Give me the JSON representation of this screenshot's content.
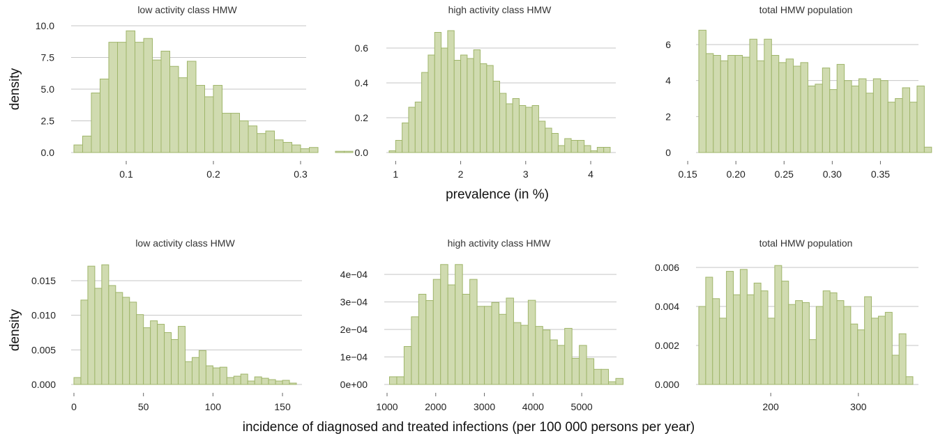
{
  "figure": {
    "shared_labels": {
      "top_ylabel": "density",
      "top_xlabel": "prevalence (in %)",
      "bottom_ylabel": "density",
      "bottom_xlabel": "incidence of diagnosed and treated infections (per 100 000 persons per year)"
    },
    "colors": {
      "bar_fill": "#d0dbb0",
      "bar_stroke": "#9fb56a",
      "grid": "#c6c6c6"
    }
  },
  "chart_data": [
    {
      "type": "bar",
      "title": "low activity class HMW",
      "xlabel": "",
      "ylabel": "density",
      "x_start": 0.04,
      "bin_width": 0.01,
      "values": [
        0.6,
        1.3,
        4.7,
        5.8,
        8.7,
        8.7,
        9.6,
        8.7,
        9.0,
        7.3,
        8.0,
        6.8,
        5.9,
        7.2,
        5.3,
        4.4,
        5.3,
        3.1,
        3.1,
        2.5,
        2.1,
        1.5,
        1.7,
        1.0,
        0.8,
        0.6,
        0.3,
        0.4,
        0.0,
        0.0,
        0.1,
        0.1
      ],
      "xlim": [
        0.04,
        0.3
      ],
      "ylim": [
        0,
        10.0
      ],
      "xticks": [
        {
          "v": 0.1,
          "label": "0.1"
        },
        {
          "v": 0.2,
          "label": "0.2"
        },
        {
          "v": 0.3,
          "label": "0.3"
        }
      ],
      "yticks": [
        {
          "v": 0,
          "label": "0.0"
        },
        {
          "v": 2.5,
          "label": "2.5"
        },
        {
          "v": 5.0,
          "label": "5.0"
        },
        {
          "v": 7.5,
          "label": "7.5"
        },
        {
          "v": 10.0,
          "label": "10.0"
        }
      ],
      "grid": true
    },
    {
      "type": "bar",
      "title": "high activity class HMW",
      "xlabel": "prevalence (in %)",
      "ylabel": "",
      "x_start": 0.9,
      "bin_width": 0.1,
      "values": [
        0.01,
        0.07,
        0.17,
        0.26,
        0.29,
        0.46,
        0.56,
        0.69,
        0.6,
        0.7,
        0.53,
        0.56,
        0.54,
        0.59,
        0.51,
        0.5,
        0.41,
        0.34,
        0.28,
        0.31,
        0.27,
        0.26,
        0.27,
        0.18,
        0.14,
        0.11,
        0.04,
        0.08,
        0.07,
        0.07,
        0.04,
        0.01,
        0.03,
        0.03
      ],
      "xlim": [
        0.9,
        4.3
      ],
      "ylim": [
        0,
        0.6
      ],
      "xticks": [
        {
          "v": 1,
          "label": "1"
        },
        {
          "v": 2,
          "label": "2"
        },
        {
          "v": 3,
          "label": "3"
        },
        {
          "v": 4,
          "label": "4"
        }
      ],
      "yticks": [
        {
          "v": 0,
          "label": "0.0"
        },
        {
          "v": 0.2,
          "label": "0.2"
        },
        {
          "v": 0.4,
          "label": "0.4"
        },
        {
          "v": 0.6,
          "label": "0.6"
        }
      ],
      "grid": true
    },
    {
      "type": "bar",
      "title": "total HMW population",
      "xlabel": "",
      "ylabel": "",
      "x_start": 0.1615,
      "bin_width": 0.00755,
      "values": [
        6.8,
        5.5,
        5.4,
        5.1,
        5.4,
        5.4,
        5.3,
        6.3,
        5.1,
        6.3,
        5.4,
        5.0,
        5.2,
        4.8,
        5.0,
        3.7,
        3.8,
        4.7,
        3.5,
        4.9,
        4.0,
        3.7,
        4.1,
        3.3,
        4.1,
        4.0,
        2.8,
        3.0,
        3.6,
        2.8,
        3.7,
        0.3
      ],
      "xlim": [
        0.1615,
        0.3837
      ],
      "ylim": [
        0,
        6
      ],
      "xticks": [
        {
          "v": 0.15,
          "label": "0.15"
        },
        {
          "v": 0.2,
          "label": "0.20"
        },
        {
          "v": 0.25,
          "label": "0.25"
        },
        {
          "v": 0.3,
          "label": "0.30"
        },
        {
          "v": 0.35,
          "label": "0.35"
        }
      ],
      "yticks": [
        {
          "v": 0,
          "label": "0"
        },
        {
          "v": 2,
          "label": "2"
        },
        {
          "v": 4,
          "label": "4"
        },
        {
          "v": 6,
          "label": "6"
        }
      ],
      "grid": true
    },
    {
      "type": "bar",
      "title": "low activity class HMW",
      "xlabel": "",
      "ylabel": "density",
      "x_start": 0,
      "bin_width": 5,
      "values": [
        0.001,
        0.0122,
        0.0171,
        0.0139,
        0.0173,
        0.0143,
        0.0133,
        0.0126,
        0.0119,
        0.0101,
        0.0082,
        0.0092,
        0.0087,
        0.0075,
        0.0065,
        0.0084,
        0.0033,
        0.0039,
        0.0049,
        0.0027,
        0.0024,
        0.0025,
        0.001,
        0.0012,
        0.0015,
        0.0005,
        0.0011,
        0.0009,
        0.0007,
        0.0005,
        0.0006,
        0.0002
      ],
      "xlim": [
        0,
        160
      ],
      "ylim": [
        0,
        0.015
      ],
      "xticks": [
        {
          "v": 0,
          "label": "0"
        },
        {
          "v": 50,
          "label": "50"
        },
        {
          "v": 100,
          "label": "100"
        },
        {
          "v": 150,
          "label": "150"
        }
      ],
      "yticks": [
        {
          "v": 0,
          "label": "0.000"
        },
        {
          "v": 0.005,
          "label": "0.005"
        },
        {
          "v": 0.01,
          "label": "0.010"
        },
        {
          "v": 0.015,
          "label": "0.015"
        }
      ],
      "grid": true
    },
    {
      "type": "bar",
      "title": "high activity class HMW",
      "xlabel": "incidence of diagnosed and treated infections (per 100 000 persons per year)",
      "ylabel": "",
      "x_start": 1050,
      "bin_width": 150,
      "values": [
        2.8e-05,
        2.8e-05,
        0.000138,
        0.000246,
        0.000328,
        0.000305,
        0.000382,
        0.000436,
        0.000362,
        0.000436,
        0.000328,
        0.000382,
        0.000284,
        0.000284,
        0.000298,
        0.000255,
        0.000314,
        0.000225,
        0.000215,
        0.000306,
        0.000211,
        0.000198,
        0.000162,
        0.000142,
        0.000204,
        9.5e-05,
        0.000142,
        9.4e-05,
        5.5e-05,
        5.5e-05,
        1e-05,
        2.2e-05
      ],
      "xlim": [
        1000,
        5600
      ],
      "ylim": [
        0,
        0.0004
      ],
      "xticks": [
        {
          "v": 1000,
          "label": "1000"
        },
        {
          "v": 2000,
          "label": "2000"
        },
        {
          "v": 3000,
          "label": "3000"
        },
        {
          "v": 4000,
          "label": "4000"
        },
        {
          "v": 5000,
          "label": "5000"
        }
      ],
      "yticks": [
        {
          "v": 0,
          "label": "0e+00"
        },
        {
          "v": 0.0001,
          "label": "1e−04"
        },
        {
          "v": 0.0002,
          "label": "2e−04"
        },
        {
          "v": 0.0003,
          "label": "3e−04"
        },
        {
          "v": 0.0004,
          "label": "4e−04"
        }
      ],
      "grid": true
    },
    {
      "type": "bar",
      "title": "total HMW population",
      "xlabel": "",
      "ylabel": "",
      "x_start": 117.9,
      "bin_width": 7.88,
      "values": [
        0.004,
        0.0055,
        0.0044,
        0.0034,
        0.0058,
        0.0046,
        0.0059,
        0.0046,
        0.0052,
        0.0048,
        0.0034,
        0.0061,
        0.0053,
        0.0041,
        0.0043,
        0.0042,
        0.0023,
        0.004,
        0.0048,
        0.0047,
        0.0043,
        0.004,
        0.0031,
        0.0028,
        0.0045,
        0.0034,
        0.0035,
        0.0037,
        0.0015,
        0.0026,
        0.0004
      ],
      "xlim": [
        117.9,
        362.2
      ],
      "ylim": [
        0,
        0.006
      ],
      "xticks": [
        {
          "v": 200,
          "label": "200"
        },
        {
          "v": 300,
          "label": "300"
        }
      ],
      "yticks": [
        {
          "v": 0,
          "label": "0.000"
        },
        {
          "v": 0.002,
          "label": "0.002"
        },
        {
          "v": 0.004,
          "label": "0.004"
        },
        {
          "v": 0.006,
          "label": "0.006"
        }
      ],
      "grid": true
    }
  ]
}
